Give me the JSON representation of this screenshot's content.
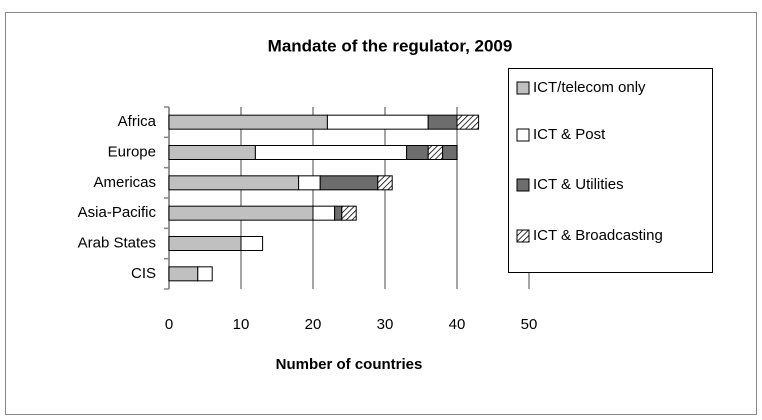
{
  "chart_data": {
    "type": "barh_stacked",
    "title": "Mandate of the regulator, 2009",
    "x_label": "Number of countries",
    "categories": [
      "Africa",
      "Europe",
      "Americas",
      "Asia-Pacific",
      "Arab States",
      "CIS"
    ],
    "series": [
      {
        "name": "ICT/telecom only",
        "color": "#c0c0c0",
        "values": [
          22,
          12,
          18,
          20,
          10,
          4
        ]
      },
      {
        "name": "ICT & Post",
        "color": "#ffffff",
        "values": [
          14,
          21,
          3,
          3,
          3,
          2
        ]
      },
      {
        "name": "ICT & Utilities",
        "color": "#6d6d6d",
        "values": [
          4,
          3,
          8,
          1,
          0,
          0
        ]
      },
      {
        "name": "ICT & Broadcasting",
        "color": "#ffffff",
        "hatch": true,
        "values": [
          3,
          2,
          2,
          2,
          0,
          0
        ]
      },
      {
        "color": "#6d6d6d",
        "values": [
          0,
          2,
          0,
          0,
          0,
          0
        ]
      }
    ],
    "xlim": [
      0,
      50
    ],
    "xticks": [
      0,
      10,
      20,
      30,
      40,
      50
    ],
    "grid": true,
    "legend": "right"
  }
}
